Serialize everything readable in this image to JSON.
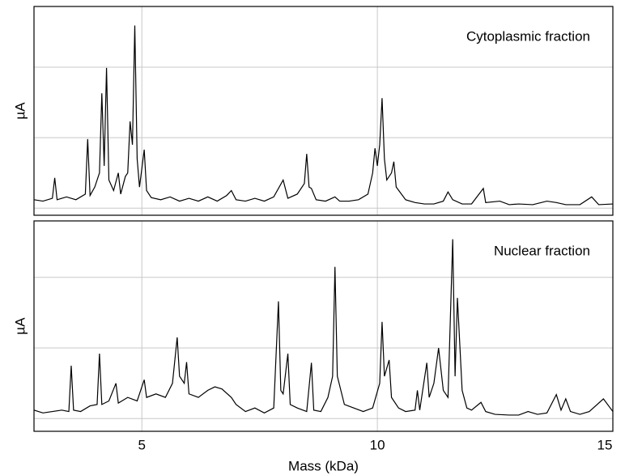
{
  "chart_data": [
    {
      "type": "line",
      "annotation": "Cytoplasmic fraction",
      "ylabel": "µA",
      "xlim": [
        2.71,
        15
      ],
      "xticks": [
        5,
        10,
        15
      ],
      "xtick_labels": false,
      "ylim": [
        -0.1,
        2.86
      ],
      "yticks": [
        0,
        1,
        2
      ],
      "grid": true,
      "series": [
        {
          "color": "#000000",
          "x": [
            2.71,
            2.9,
            3.1,
            3.15,
            3.2,
            3.4,
            3.6,
            3.8,
            3.85,
            3.9,
            4.0,
            4.1,
            4.15,
            4.2,
            4.25,
            4.3,
            4.4,
            4.5,
            4.55,
            4.65,
            4.7,
            4.75,
            4.8,
            4.85,
            4.9,
            4.95,
            5.05,
            5.1,
            5.2,
            5.4,
            5.6,
            5.8,
            6.0,
            6.2,
            6.4,
            6.6,
            6.8,
            6.9,
            7.0,
            7.2,
            7.4,
            7.6,
            7.8,
            8.0,
            8.1,
            8.3,
            8.45,
            8.5,
            8.55,
            8.6,
            8.7,
            8.9,
            9.1,
            9.2,
            9.4,
            9.6,
            9.8,
            9.9,
            9.95,
            10.0,
            10.05,
            10.1,
            10.15,
            10.2,
            10.3,
            10.35,
            10.4,
            10.6,
            10.8,
            11.0,
            11.2,
            11.4,
            11.5,
            11.6,
            11.8,
            12.0,
            12.25,
            12.3,
            12.6,
            12.8,
            13.0,
            13.3,
            13.6,
            13.8,
            14.0,
            14.3,
            14.55,
            14.7,
            15.0
          ],
          "values": [
            0.12,
            0.1,
            0.14,
            0.43,
            0.12,
            0.16,
            0.12,
            0.2,
            0.98,
            0.18,
            0.3,
            0.5,
            1.63,
            0.6,
            1.99,
            0.4,
            0.25,
            0.5,
            0.2,
            0.45,
            0.5,
            1.23,
            0.9,
            2.59,
            0.7,
            0.3,
            0.83,
            0.25,
            0.15,
            0.12,
            0.16,
            0.1,
            0.14,
            0.1,
            0.16,
            0.1,
            0.18,
            0.25,
            0.12,
            0.1,
            0.14,
            0.1,
            0.16,
            0.4,
            0.14,
            0.2,
            0.35,
            0.77,
            0.3,
            0.28,
            0.12,
            0.1,
            0.16,
            0.1,
            0.1,
            0.12,
            0.2,
            0.5,
            0.85,
            0.6,
            0.9,
            1.56,
            0.7,
            0.4,
            0.5,
            0.66,
            0.3,
            0.12,
            0.08,
            0.06,
            0.06,
            0.1,
            0.23,
            0.12,
            0.06,
            0.06,
            0.28,
            0.08,
            0.1,
            0.05,
            0.06,
            0.05,
            0.1,
            0.08,
            0.05,
            0.05,
            0.16,
            0.05,
            0.06
          ]
        }
      ]
    },
    {
      "type": "line",
      "annotation": "Nuclear fraction",
      "ylabel": "µA",
      "xlabel": "Mass (kDa)",
      "xlim": [
        2.71,
        15
      ],
      "xticks": [
        5,
        10,
        15
      ],
      "xtick_labels": true,
      "ylim": [
        -0.18,
        2.8
      ],
      "yticks": [
        0,
        1,
        2
      ],
      "grid": true,
      "series": [
        {
          "color": "#000000",
          "x": [
            2.71,
            2.9,
            3.1,
            3.3,
            3.45,
            3.5,
            3.55,
            3.7,
            3.9,
            4.05,
            4.1,
            4.15,
            4.3,
            4.45,
            4.5,
            4.7,
            4.9,
            5.05,
            5.1,
            5.3,
            5.5,
            5.65,
            5.75,
            5.8,
            5.9,
            5.95,
            6.0,
            6.2,
            6.4,
            6.55,
            6.7,
            6.9,
            7.0,
            7.2,
            7.4,
            7.6,
            7.8,
            7.9,
            7.95,
            8.0,
            8.1,
            8.15,
            8.3,
            8.5,
            8.6,
            8.65,
            8.8,
            8.95,
            9.05,
            9.1,
            9.15,
            9.3,
            9.5,
            9.7,
            9.9,
            10.05,
            10.1,
            10.15,
            10.25,
            10.3,
            10.45,
            10.6,
            10.8,
            10.85,
            10.9,
            11.05,
            11.1,
            11.2,
            11.3,
            11.4,
            11.5,
            11.6,
            11.65,
            11.7,
            11.8,
            11.9,
            12.0,
            12.2,
            12.3,
            12.5,
            12.8,
            13.0,
            13.2,
            13.4,
            13.6,
            13.8,
            13.9,
            14.0,
            14.1,
            14.3,
            14.5,
            14.8,
            15.0
          ],
          "values": [
            0.12,
            0.08,
            0.1,
            0.12,
            0.1,
            0.75,
            0.12,
            0.1,
            0.18,
            0.2,
            0.92,
            0.2,
            0.25,
            0.5,
            0.22,
            0.3,
            0.25,
            0.55,
            0.3,
            0.35,
            0.3,
            0.5,
            1.15,
            0.6,
            0.5,
            0.8,
            0.35,
            0.3,
            0.4,
            0.45,
            0.42,
            0.3,
            0.2,
            0.1,
            0.15,
            0.08,
            0.15,
            1.66,
            0.4,
            0.35,
            0.92,
            0.2,
            0.15,
            0.1,
            0.79,
            0.12,
            0.1,
            0.3,
            0.6,
            2.15,
            0.6,
            0.2,
            0.15,
            0.1,
            0.15,
            0.5,
            1.37,
            0.6,
            0.83,
            0.3,
            0.15,
            0.1,
            0.12,
            0.4,
            0.12,
            0.79,
            0.3,
            0.5,
            1.0,
            0.4,
            0.3,
            2.54,
            0.6,
            1.71,
            0.4,
            0.15,
            0.12,
            0.23,
            0.1,
            0.06,
            0.05,
            0.05,
            0.1,
            0.06,
            0.08,
            0.34,
            0.12,
            0.28,
            0.1,
            0.06,
            0.1,
            0.28,
            0.1
          ]
        }
      ]
    }
  ]
}
